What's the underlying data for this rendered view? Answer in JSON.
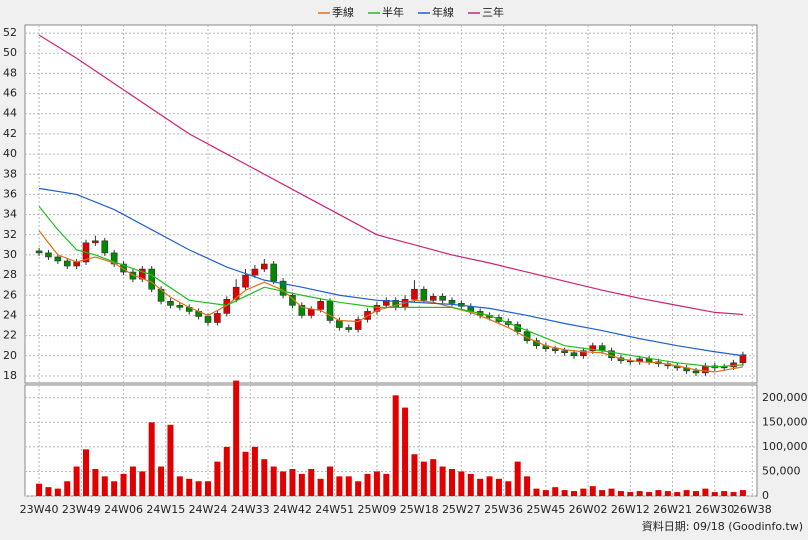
{
  "chart_data": {
    "type": "candlestick",
    "x": [
      0,
      2,
      4,
      6,
      8,
      10,
      12,
      14,
      16,
      18,
      20,
      22,
      24,
      26,
      28,
      30,
      32,
      34,
      36,
      38,
      40,
      42,
      44,
      46,
      48,
      50,
      52,
      54,
      56,
      58,
      60,
      62,
      64,
      66,
      68,
      70,
      72,
      74,
      76,
      78,
      80,
      82,
      84,
      86,
      88,
      90,
      92,
      94,
      96,
      98,
      100,
      102,
      104,
      106,
      108,
      110,
      112,
      114,
      116,
      118,
      120,
      122,
      124,
      126,
      128,
      130,
      132,
      134,
      136,
      138,
      140,
      142,
      144,
      146,
      148,
      150
    ],
    "open": [
      30.4,
      30.2,
      29.8,
      29.4,
      28.9,
      29.3,
      31.2,
      31.4,
      30.2,
      29.1,
      28.3,
      27.6,
      28.6,
      26.6,
      25.4,
      25.0,
      24.8,
      24.4,
      23.9,
      23.3,
      24.2,
      25.6,
      26.8,
      28.0,
      28.6,
      29.1,
      27.4,
      26.0,
      25.0,
      24.0,
      24.6,
      25.4,
      23.5,
      22.8,
      22.6,
      23.6,
      24.4,
      25.0,
      25.5,
      24.8,
      25.6,
      26.6,
      25.5,
      25.9,
      25.5,
      25.2,
      24.9,
      24.4,
      24.0,
      23.8,
      23.4,
      23.1,
      22.4,
      21.5,
      21.0,
      20.7,
      20.5,
      20.3,
      20.0,
      20.5,
      21.0,
      20.5,
      19.8,
      19.5,
      19.4,
      19.7,
      19.4,
      19.2,
      19.0,
      18.8,
      18.5,
      18.3,
      19.0,
      18.8,
      18.9,
      19.3
    ],
    "high": [
      30.7,
      30.5,
      30.1,
      29.7,
      29.6,
      31.5,
      31.9,
      31.7,
      30.5,
      29.4,
      28.6,
      28.9,
      28.9,
      26.9,
      25.7,
      25.3,
      25.1,
      24.7,
      24.2,
      24.5,
      25.9,
      27.6,
      28.6,
      29.0,
      29.6,
      29.4,
      27.7,
      26.3,
      25.3,
      24.9,
      25.7,
      25.7,
      23.8,
      23.1,
      23.9,
      24.7,
      25.3,
      25.8,
      25.8,
      26.0,
      27.5,
      26.9,
      26.2,
      26.2,
      25.8,
      25.5,
      25.2,
      24.7,
      24.3,
      24.1,
      23.7,
      23.4,
      22.7,
      21.8,
      21.3,
      21.0,
      20.8,
      20.6,
      20.8,
      21.3,
      21.3,
      20.8,
      20.1,
      19.8,
      20.0,
      20.0,
      19.7,
      19.5,
      19.3,
      19.1,
      18.8,
      19.3,
      19.3,
      19.2,
      19.6,
      20.4
    ],
    "low": [
      29.9,
      29.5,
      29.1,
      28.6,
      28.6,
      29.0,
      30.9,
      29.9,
      28.8,
      28.0,
      27.3,
      27.3,
      26.3,
      25.1,
      24.7,
      24.5,
      24.1,
      23.6,
      23.0,
      23.0,
      23.9,
      25.3,
      26.5,
      27.7,
      28.3,
      27.1,
      25.7,
      24.7,
      23.7,
      23.7,
      24.3,
      23.2,
      22.5,
      22.3,
      22.3,
      23.3,
      24.1,
      24.7,
      24.5,
      24.5,
      25.3,
      25.2,
      25.2,
      25.2,
      24.9,
      24.6,
      24.1,
      23.7,
      23.5,
      23.1,
      22.8,
      22.1,
      21.2,
      20.7,
      20.4,
      20.2,
      20.0,
      19.7,
      19.7,
      20.2,
      20.2,
      19.5,
      19.2,
      19.1,
      19.1,
      19.1,
      18.9,
      18.7,
      18.5,
      18.2,
      18.0,
      18.0,
      18.5,
      18.5,
      18.6,
      19.0
    ],
    "close": [
      30.2,
      29.8,
      29.4,
      28.9,
      29.3,
      31.2,
      31.4,
      30.2,
      29.1,
      28.3,
      27.6,
      28.6,
      26.6,
      25.4,
      25.0,
      24.8,
      24.4,
      23.9,
      23.3,
      24.2,
      25.6,
      26.8,
      28.0,
      28.6,
      29.1,
      27.4,
      26.0,
      25.0,
      24.0,
      24.6,
      25.4,
      23.5,
      22.8,
      22.6,
      23.6,
      24.4,
      25.0,
      25.5,
      24.8,
      25.6,
      26.6,
      25.5,
      25.9,
      25.5,
      25.2,
      24.9,
      24.4,
      24.0,
      23.8,
      23.4,
      23.1,
      22.4,
      21.5,
      21.0,
      20.7,
      20.5,
      20.3,
      20.0,
      20.5,
      21.0,
      20.5,
      19.8,
      19.5,
      19.4,
      19.7,
      19.4,
      19.2,
      19.0,
      18.8,
      18.5,
      18.3,
      19.0,
      18.8,
      18.9,
      19.3,
      20.1
    ],
    "up_color": "#e00000",
    "down_color": "#008800",
    "volume": {
      "axis": "y2",
      "color": "#e00000",
      "values": [
        25000,
        18000,
        15000,
        30000,
        60000,
        95000,
        55000,
        40000,
        30000,
        45000,
        60000,
        50000,
        150000,
        60000,
        145000,
        40000,
        35000,
        30000,
        30000,
        70000,
        100000,
        235000,
        90000,
        100000,
        75000,
        60000,
        50000,
        55000,
        45000,
        55000,
        35000,
        60000,
        40000,
        40000,
        30000,
        45000,
        50000,
        45000,
        205000,
        180000,
        85000,
        70000,
        75000,
        60000,
        55000,
        50000,
        45000,
        35000,
        40000,
        35000,
        30000,
        70000,
        40000,
        15000,
        12000,
        18000,
        12000,
        10000,
        15000,
        20000,
        12000,
        15000,
        10000,
        8000,
        10000,
        8000,
        12000,
        10000,
        8000,
        12000,
        10000,
        15000,
        8000,
        10000,
        8000,
        12000
      ]
    },
    "series": [
      {
        "name": "季線",
        "color": "#e07020",
        "x": [
          0,
          4,
          8,
          12,
          16,
          20,
          24,
          28,
          32,
          36,
          40,
          44,
          48,
          52,
          56,
          60,
          64,
          68,
          72,
          76,
          80,
          84,
          88,
          92,
          96,
          100,
          104,
          108,
          112,
          116,
          120,
          124,
          128,
          132,
          136,
          140,
          144,
          150
        ],
        "values": [
          32.4,
          30,
          29.3,
          29.8,
          29.2,
          28,
          27.3,
          25.8,
          24.8,
          24,
          25,
          26.5,
          27.3,
          26.5,
          24.8,
          24.5,
          23.5,
          23.4,
          24.5,
          25,
          25.5,
          25.3,
          24.8,
          24.3,
          23.6,
          22.8,
          21.8,
          21,
          20.6,
          20.4,
          20.3,
          19.7,
          19.4,
          19.3,
          19,
          18.6,
          18.4,
          18.9
        ]
      },
      {
        "name": "半年",
        "color": "#20c020",
        "x": [
          0,
          4,
          8,
          12,
          16,
          24,
          32,
          40,
          48,
          56,
          64,
          72,
          80,
          88,
          96,
          104,
          112,
          120,
          128,
          136,
          144,
          150
        ],
        "values": [
          34.8,
          32.5,
          30.5,
          30,
          29.3,
          28,
          25.5,
          25,
          26.8,
          26,
          25.3,
          24.8,
          24.8,
          24.8,
          24,
          22.5,
          21,
          20.5,
          19.9,
          19.3,
          18.9,
          19.1
        ]
      },
      {
        "name": "年線",
        "color": "#2060d0",
        "x": [
          0,
          8,
          16,
          24,
          32,
          40,
          48,
          56,
          64,
          72,
          80,
          88,
          96,
          104,
          112,
          120,
          128,
          136,
          144,
          150
        ],
        "values": [
          36.6,
          36,
          34.5,
          32.5,
          30.5,
          28.8,
          27.5,
          26.8,
          26,
          25.5,
          25.3,
          25.1,
          24.7,
          24,
          23.2,
          22.5,
          21.7,
          21,
          20.4,
          20
        ]
      },
      {
        "name": "三年",
        "color": "#d0207a",
        "x": [
          0,
          8,
          16,
          24,
          32,
          40,
          48,
          56,
          64,
          72,
          80,
          88,
          96,
          104,
          112,
          120,
          128,
          136,
          144,
          150
        ],
        "values": [
          51.8,
          49.5,
          47,
          44.5,
          42,
          40,
          38,
          36,
          34,
          32,
          31,
          30,
          29.2,
          28.3,
          27.4,
          26.5,
          25.7,
          25,
          24.3,
          24.1
        ]
      }
    ],
    "xlim": [
      -3,
      153
    ],
    "xticks": [
      {
        "value": 0,
        "label": "23W40"
      },
      {
        "value": 9,
        "label": "23W49"
      },
      {
        "value": 18,
        "label": "24W06"
      },
      {
        "value": 27,
        "label": "24W15"
      },
      {
        "value": 36,
        "label": "24W24"
      },
      {
        "value": 45,
        "label": "24W33"
      },
      {
        "value": 54,
        "label": "24W42"
      },
      {
        "value": 63,
        "label": "24W51"
      },
      {
        "value": 72,
        "label": "25W09"
      },
      {
        "value": 81,
        "label": "25W18"
      },
      {
        "value": 90,
        "label": "25W27"
      },
      {
        "value": 99,
        "label": "25W36"
      },
      {
        "value": 108,
        "label": "25W45"
      },
      {
        "value": 117,
        "label": "26W02"
      },
      {
        "value": 126,
        "label": "26W12"
      },
      {
        "value": 135,
        "label": "26W21"
      },
      {
        "value": 144,
        "label": "26W30"
      },
      {
        "value": 152,
        "label": "26W38"
      }
    ],
    "ylim": [
      17.3,
      52.8
    ],
    "yticks": [
      18,
      20,
      22,
      24,
      26,
      28,
      30,
      32,
      34,
      36,
      38,
      40,
      42,
      44,
      46,
      48,
      50,
      52
    ],
    "y2lim": [
      0,
      226000
    ],
    "y2ticks": [
      0,
      {
        "value": 50000,
        "label": "50,000"
      },
      {
        "value": 100000,
        "label": "100,000"
      },
      {
        "value": 150000,
        "label": "150,000"
      },
      {
        "value": 200000,
        "label": "200,000"
      }
    ],
    "grid": true,
    "legend": "top",
    "footnote": "資料日期: 09/18 (Goodinfo.tw)"
  }
}
